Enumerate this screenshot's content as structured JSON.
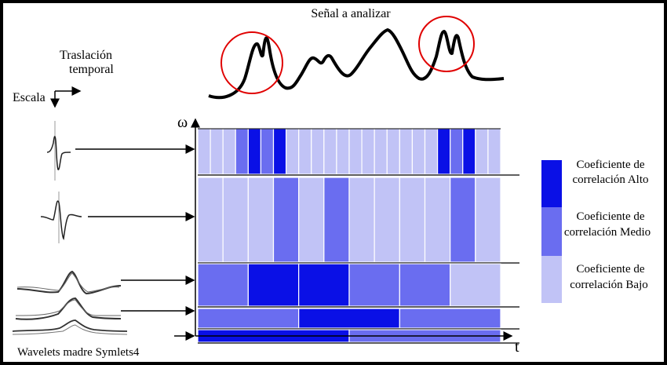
{
  "title": "Señal a analizar",
  "axes": {
    "translation_line1": "Traslación",
    "translation_line2": "temporal",
    "scale": "Escala",
    "omega": "ω",
    "time": "t"
  },
  "caption": "Wavelets madre Symlets4",
  "legend": [
    {
      "line1": "Coeficiente de",
      "line2": "correlación Alto",
      "color": "#0a10e6"
    },
    {
      "line1": "Coeficiente de",
      "line2": "correlación Medio",
      "color": "#6a6df0"
    },
    {
      "line1": "Coeficiente de",
      "line2": "correlación Bajo",
      "color": "#c1c3f6"
    }
  ],
  "colors": {
    "high": "#0a10e6",
    "medium": "#6a6df0",
    "low": "#c1c3f6",
    "very_low": "#d8d9f8",
    "highlight_circle": "#e00000"
  },
  "grid": {
    "rows": [
      {
        "levels": [
          "L",
          "L",
          "L",
          "M",
          "H",
          "M",
          "H",
          "L",
          "L",
          "L",
          "L",
          "L",
          "L",
          "L",
          "L",
          "L",
          "L",
          "L",
          "L",
          "H",
          "M",
          "H",
          "L",
          "L"
        ]
      },
      {
        "levels": [
          "L",
          "L",
          "L",
          "M",
          "L",
          "M",
          "L",
          "L",
          "L",
          "L",
          "M",
          "L"
        ]
      },
      {
        "levels": [
          "M",
          "H",
          "H",
          "M",
          "M",
          "L"
        ]
      },
      {
        "levels": [
          "M",
          "H",
          "M"
        ]
      },
      {
        "levels": [
          "H",
          "M"
        ]
      }
    ]
  }
}
